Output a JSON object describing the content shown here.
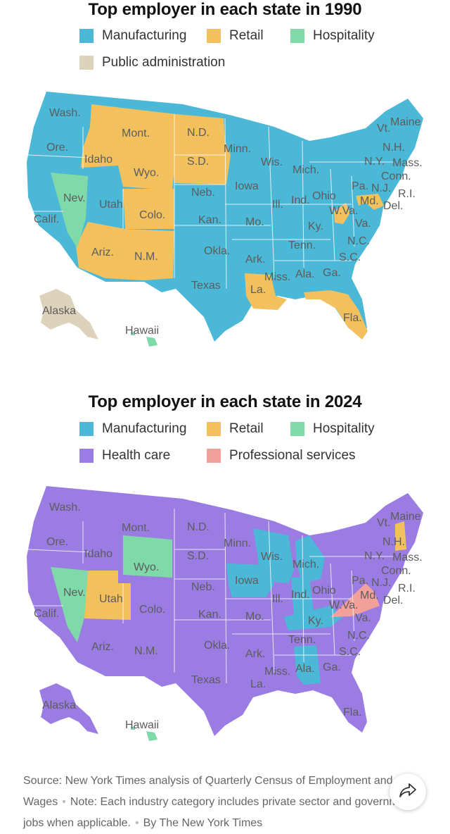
{
  "colors": {
    "manufacturing": "#4bb8d7",
    "retail": "#f2c15e",
    "hospitality": "#7fd9a8",
    "public_administration": "#ddd2bc",
    "health_care": "#9a7ce3",
    "professional_services": "#f4a09a"
  },
  "map1990": {
    "title": "Top employer in each state in 1990",
    "legend": [
      "Manufacturing",
      "Retail",
      "Hospitality",
      "Public administration"
    ]
  },
  "map2024": {
    "title": "Top employer in each state in 2024",
    "legend": [
      "Manufacturing",
      "Retail",
      "Hospitality",
      "Health care",
      "Professional services"
    ]
  },
  "state_labels": [
    "Wash.",
    "Ore.",
    "Calif.",
    "Nev.",
    "Idaho",
    "Mont.",
    "Wyo.",
    "Utah",
    "Colo.",
    "Ariz.",
    "N.M.",
    "N.D.",
    "S.D.",
    "Neb.",
    "Kan.",
    "Okla.",
    "Texas",
    "Minn.",
    "Iowa",
    "Mo.",
    "Ark.",
    "La.",
    "Wis.",
    "Ill.",
    "Mich.",
    "Ind.",
    "Ohio",
    "Ky.",
    "Tenn.",
    "Miss.",
    "Ala.",
    "Ga.",
    "Fla.",
    "S.C.",
    "N.C.",
    "Va.",
    "W.Va.",
    "Md.",
    "Del.",
    "Pa.",
    "N.J.",
    "N.Y.",
    "Conn.",
    "R.I.",
    "Mass.",
    "Vt.",
    "N.H.",
    "Maine",
    "Alaska",
    "Hawaii"
  ],
  "state_industry_1990": {
    "Wash.": "Manufacturing",
    "Ore.": "Manufacturing",
    "Calif.": "Manufacturing",
    "Nev.": "Hospitality",
    "Idaho": "Retail",
    "Mont.": "Retail",
    "Wyo.": "Retail",
    "Utah": "Manufacturing",
    "Colo.": "Retail",
    "Ariz.": "Retail",
    "N.M.": "Retail",
    "N.D.": "Retail",
    "S.D.": "Retail",
    "Neb.": "Manufacturing",
    "Kan.": "Manufacturing",
    "Okla.": "Manufacturing",
    "Texas": "Manufacturing",
    "Minn.": "Manufacturing",
    "Iowa": "Manufacturing",
    "Mo.": "Manufacturing",
    "Ark.": "Manufacturing",
    "La.": "Retail",
    "Wis.": "Manufacturing",
    "Ill.": "Manufacturing",
    "Mich.": "Manufacturing",
    "Ind.": "Manufacturing",
    "Ohio": "Manufacturing",
    "Ky.": "Manufacturing",
    "Tenn.": "Manufacturing",
    "Miss.": "Manufacturing",
    "Ala.": "Manufacturing",
    "Ga.": "Manufacturing",
    "Fla.": "Retail",
    "S.C.": "Manufacturing",
    "N.C.": "Manufacturing",
    "Va.": "Manufacturing",
    "W.Va.": "Retail",
    "Md.": "Retail",
    "Del.": "Manufacturing",
    "Pa.": "Manufacturing",
    "N.J.": "Manufacturing",
    "N.Y.": "Manufacturing",
    "Conn.": "Manufacturing",
    "R.I.": "Manufacturing",
    "Mass.": "Manufacturing",
    "Vt.": "Manufacturing",
    "N.H.": "Manufacturing",
    "Maine": "Manufacturing",
    "Alaska": "Public administration",
    "Hawaii": "Hospitality"
  },
  "state_industry_2024": {
    "Wash.": "Health care",
    "Ore.": "Health care",
    "Calif.": "Health care",
    "Nev.": "Hospitality",
    "Idaho": "Health care",
    "Mont.": "Health care",
    "Wyo.": "Hospitality",
    "Utah": "Retail",
    "Colo.": "Health care",
    "Ariz.": "Health care",
    "N.M.": "Health care",
    "N.D.": "Health care",
    "S.D.": "Health care",
    "Neb.": "Health care",
    "Kan.": "Health care",
    "Okla.": "Health care",
    "Texas": "Health care",
    "Minn.": "Health care",
    "Iowa": "Manufacturing",
    "Mo.": "Health care",
    "Ark.": "Health care",
    "La.": "Health care",
    "Wis.": "Manufacturing",
    "Ill.": "Health care",
    "Mich.": "Manufacturing",
    "Ind.": "Manufacturing",
    "Ohio": "Health care",
    "Ky.": "Manufacturing",
    "Tenn.": "Health care",
    "Miss.": "Health care",
    "Ala.": "Manufacturing",
    "Ga.": "Health care",
    "Fla.": "Health care",
    "S.C.": "Health care",
    "N.C.": "Health care",
    "Va.": "Professional services",
    "W.Va.": "Health care",
    "Md.": "Health care",
    "Del.": "Health care",
    "Pa.": "Health care",
    "N.J.": "Health care",
    "N.Y.": "Health care",
    "Conn.": "Health care",
    "R.I.": "Health care",
    "Mass.": "Health care",
    "Vt.": "Health care",
    "N.H.": "Retail",
    "Maine": "Health care",
    "Alaska": "Health care",
    "Hawaii": "Hospitality"
  },
  "footer": {
    "source": "Source: New York Times analysis of Quarterly Census of Employment and Wages",
    "note": "Note: Each industry category includes private sector and government jobs when applicable.",
    "byline": "By The New York Times"
  },
  "share_icon": "share-arrow-icon"
}
